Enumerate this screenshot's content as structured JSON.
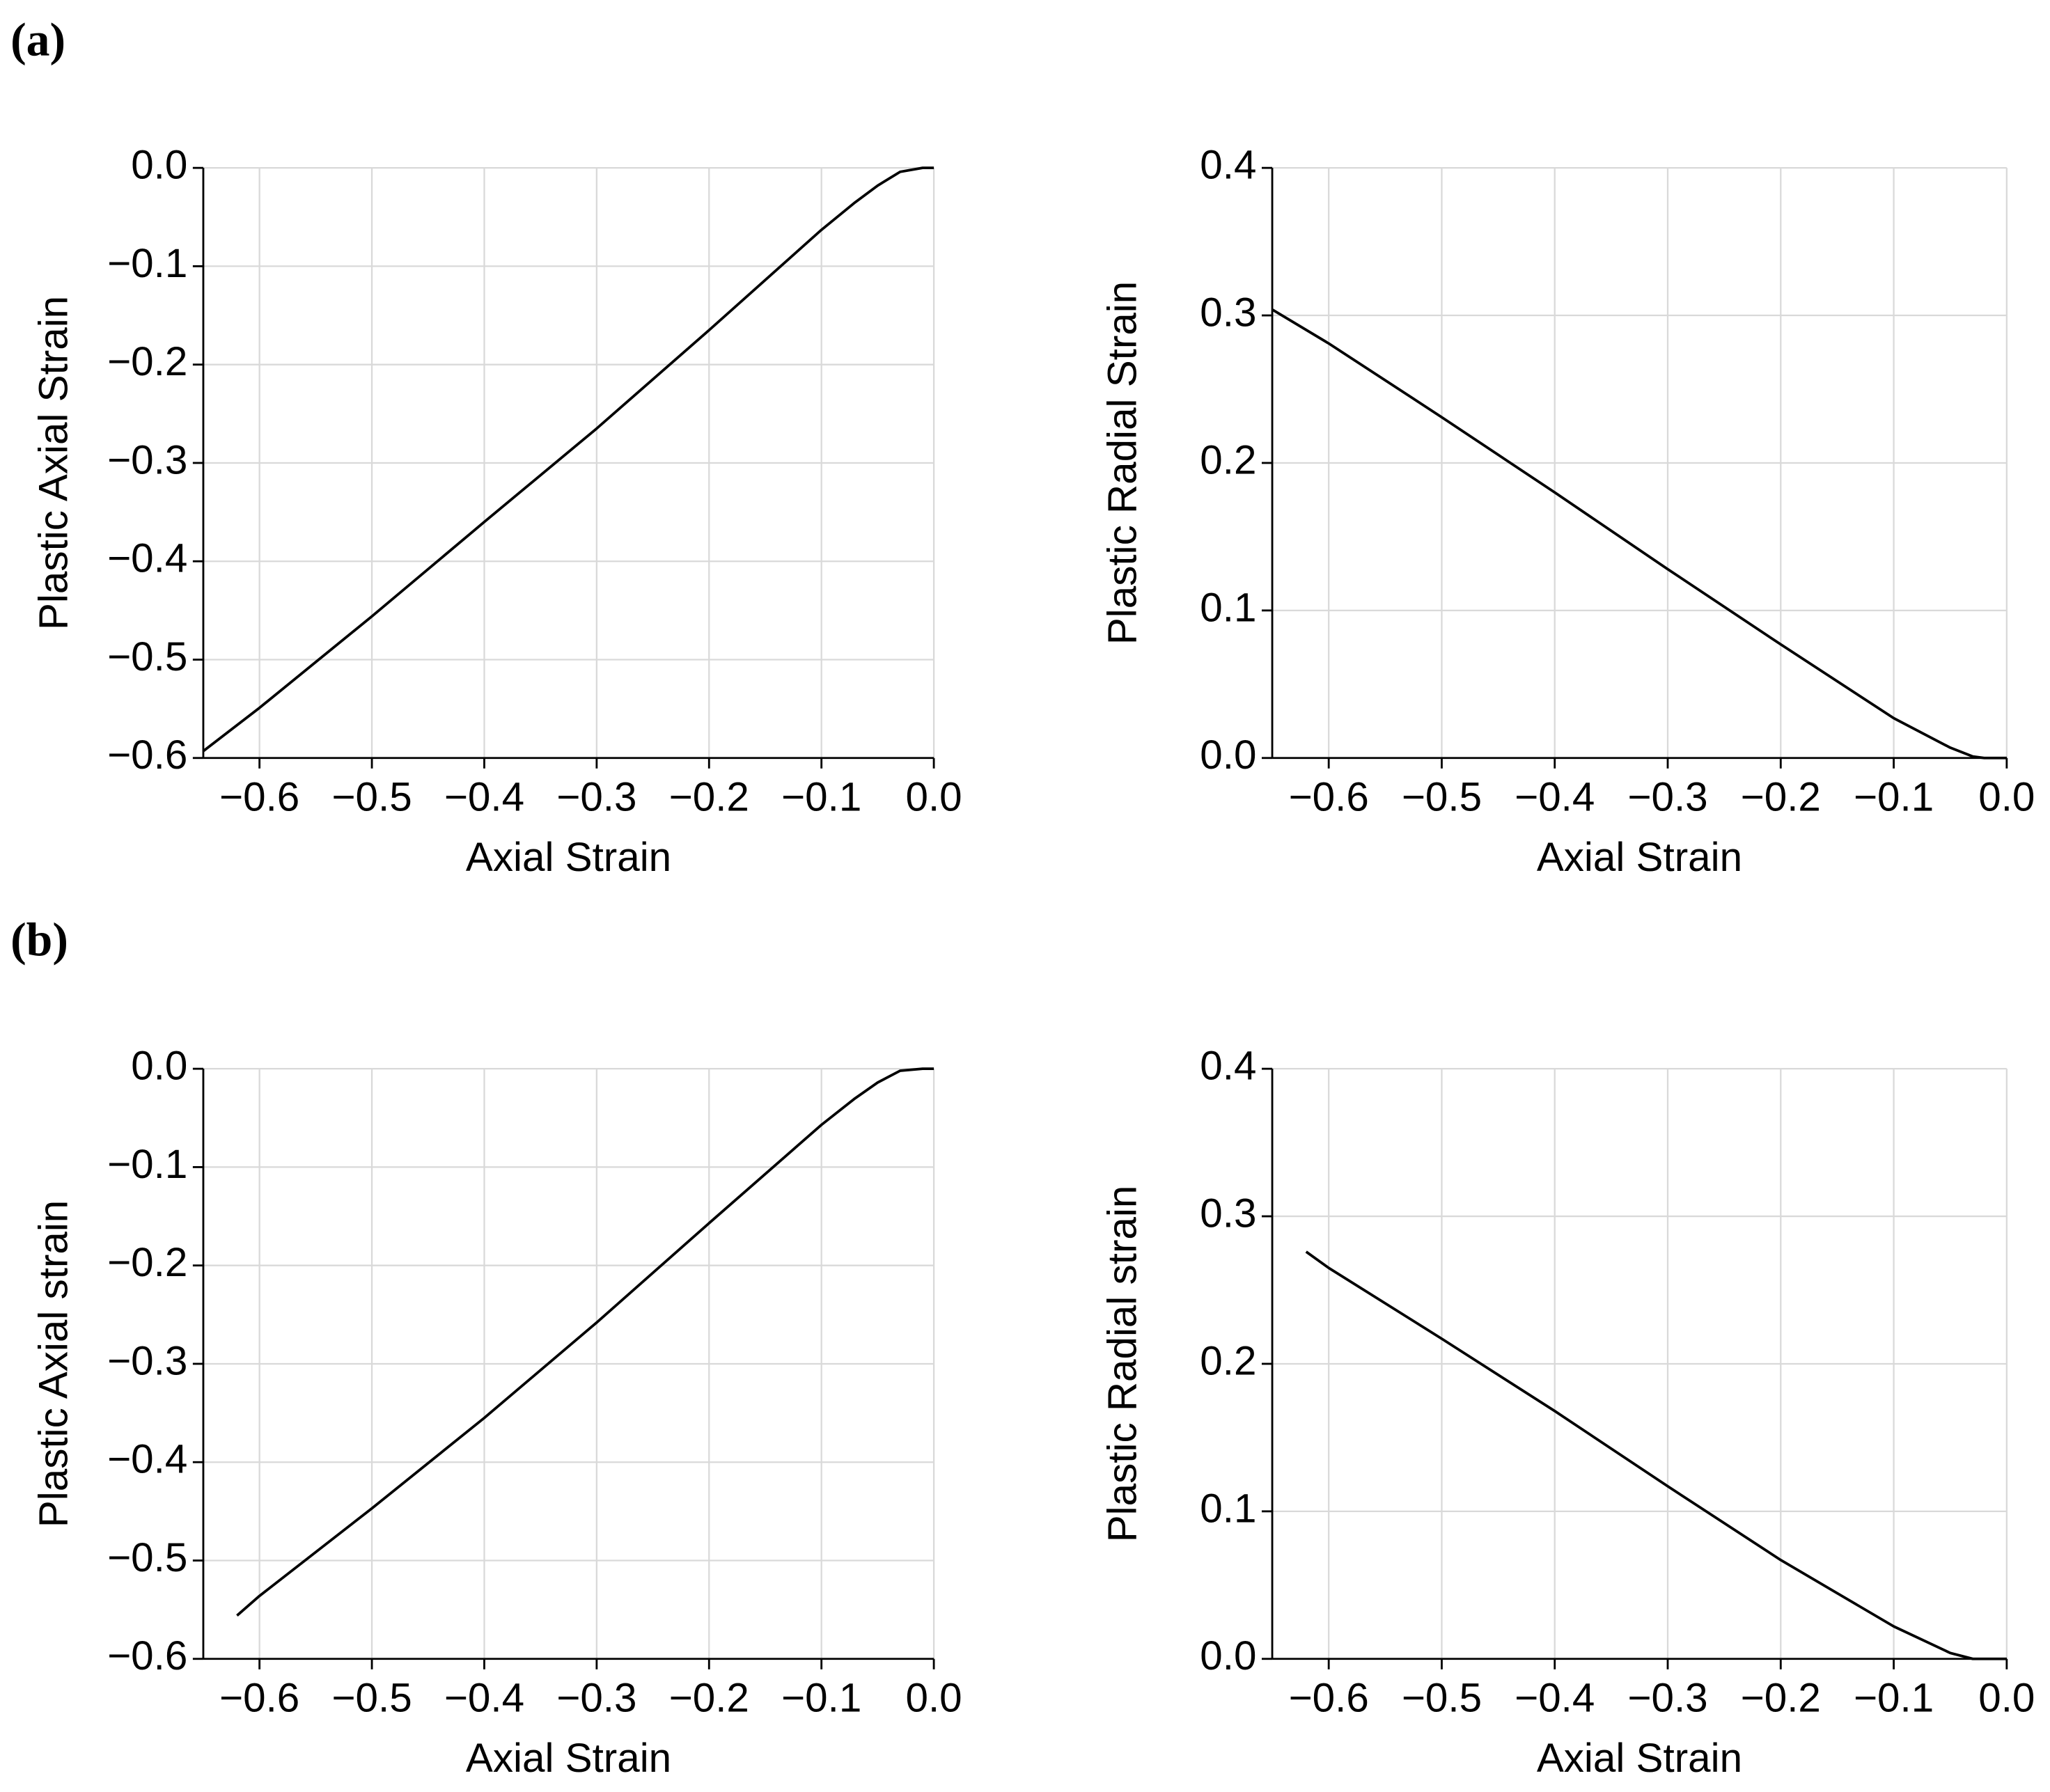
{
  "panel_labels": [
    "(a)",
    "(b)"
  ],
  "chart_data": [
    {
      "type": "line",
      "xlabel": "Axial Strain",
      "ylabel": "Plastic Axial Strain",
      "xlim": [
        -0.65,
        0
      ],
      "ylim": [
        -0.6,
        0
      ],
      "grid": true,
      "xticks": [
        {
          "value": -0.6,
          "label": "−0.6"
        },
        {
          "value": -0.5,
          "label": "−0.5"
        },
        {
          "value": -0.4,
          "label": "−0.4"
        },
        {
          "value": -0.3,
          "label": "−0.3"
        },
        {
          "value": -0.2,
          "label": "−0.2"
        },
        {
          "value": -0.1,
          "label": "−0.1"
        },
        {
          "value": 0,
          "label": "0.0"
        }
      ],
      "yticks": [
        {
          "value": -0.6,
          "label": "−0.6"
        },
        {
          "value": -0.5,
          "label": "−0.5"
        },
        {
          "value": -0.4,
          "label": "−0.4"
        },
        {
          "value": -0.3,
          "label": "−0.3"
        },
        {
          "value": -0.2,
          "label": "−0.2"
        },
        {
          "value": -0.1,
          "label": "−0.1"
        },
        {
          "value": 0,
          "label": "0.0"
        }
      ],
      "x": [
        -0.65,
        -0.6,
        -0.5,
        -0.4,
        -0.3,
        -0.2,
        -0.1,
        -0.07,
        -0.05,
        -0.03,
        -0.01,
        0
      ],
      "series": [
        {
          "color": "#000000",
          "values": [
            -0.593,
            -0.549,
            -0.456,
            -0.36,
            -0.265,
            -0.165,
            -0.063,
            -0.035,
            -0.018,
            -0.004,
            0,
            0
          ]
        }
      ]
    },
    {
      "type": "line",
      "xlabel": "Axial Strain",
      "ylabel": "Plastic Radial Strain",
      "xlim": [
        -0.65,
        0
      ],
      "ylim": [
        0,
        0.4
      ],
      "grid": true,
      "xticks": [
        {
          "value": -0.6,
          "label": "−0.6"
        },
        {
          "value": -0.5,
          "label": "−0.5"
        },
        {
          "value": -0.4,
          "label": "−0.4"
        },
        {
          "value": -0.3,
          "label": "−0.3"
        },
        {
          "value": -0.2,
          "label": "−0.2"
        },
        {
          "value": -0.1,
          "label": "−0.1"
        },
        {
          "value": 0,
          "label": "0.0"
        }
      ],
      "yticks": [
        {
          "value": 0,
          "label": "0.0"
        },
        0.1,
        0.2,
        0.3,
        0.4
      ],
      "x": [
        -0.65,
        -0.6,
        -0.5,
        -0.4,
        -0.3,
        -0.2,
        -0.1,
        -0.05,
        -0.03,
        -0.02,
        0
      ],
      "series": [
        {
          "color": "#000000",
          "values": [
            0.304,
            0.281,
            0.231,
            0.18,
            0.128,
            0.077,
            0.027,
            0.007,
            0.001,
            0,
            0
          ]
        }
      ]
    },
    {
      "type": "line",
      "xlabel": "Axial Strain",
      "ylabel": "Plastic Axial strain",
      "xlim": [
        -0.65,
        0
      ],
      "ylim": [
        -0.6,
        0
      ],
      "grid": true,
      "xticks": [
        {
          "value": -0.6,
          "label": "−0.6"
        },
        {
          "value": -0.5,
          "label": "−0.5"
        },
        {
          "value": -0.4,
          "label": "−0.4"
        },
        {
          "value": -0.3,
          "label": "−0.3"
        },
        {
          "value": -0.2,
          "label": "−0.2"
        },
        {
          "value": -0.1,
          "label": "−0.1"
        },
        {
          "value": 0,
          "label": "0.0"
        }
      ],
      "yticks": [
        {
          "value": -0.6,
          "label": "−0.6"
        },
        {
          "value": -0.5,
          "label": "−0.5"
        },
        {
          "value": -0.4,
          "label": "−0.4"
        },
        {
          "value": -0.3,
          "label": "−0.3"
        },
        {
          "value": -0.2,
          "label": "−0.2"
        },
        {
          "value": -0.1,
          "label": "−0.1"
        },
        {
          "value": 0,
          "label": "0.0"
        }
      ],
      "x": [
        -0.62,
        -0.6,
        -0.5,
        -0.4,
        -0.3,
        -0.2,
        -0.1,
        -0.07,
        -0.05,
        -0.03,
        -0.01,
        0
      ],
      "series": [
        {
          "color": "#000000",
          "values": [
            -0.556,
            -0.536,
            -0.447,
            -0.355,
            -0.258,
            -0.157,
            -0.057,
            -0.03,
            -0.014,
            -0.002,
            0,
            0
          ]
        }
      ]
    },
    {
      "type": "line",
      "xlabel": "Axial Strain",
      "ylabel": "Plastic Radial strain",
      "xlim": [
        -0.65,
        0
      ],
      "ylim": [
        0,
        0.4
      ],
      "grid": true,
      "xticks": [
        {
          "value": -0.6,
          "label": "−0.6"
        },
        {
          "value": -0.5,
          "label": "−0.5"
        },
        {
          "value": -0.4,
          "label": "−0.4"
        },
        {
          "value": -0.3,
          "label": "−0.3"
        },
        {
          "value": -0.2,
          "label": "−0.2"
        },
        {
          "value": -0.1,
          "label": "−0.1"
        },
        {
          "value": 0,
          "label": "0.0"
        }
      ],
      "yticks": [
        {
          "value": 0,
          "label": "0.0"
        },
        0.1,
        0.2,
        0.3,
        0.4
      ],
      "x": [
        -0.62,
        -0.6,
        -0.5,
        -0.4,
        -0.3,
        -0.2,
        -0.1,
        -0.05,
        -0.03,
        0
      ],
      "series": [
        {
          "color": "#000000",
          "values": [
            0.276,
            0.265,
            0.217,
            0.168,
            0.117,
            0.067,
            0.022,
            0.004,
            0,
            0
          ]
        }
      ]
    }
  ]
}
